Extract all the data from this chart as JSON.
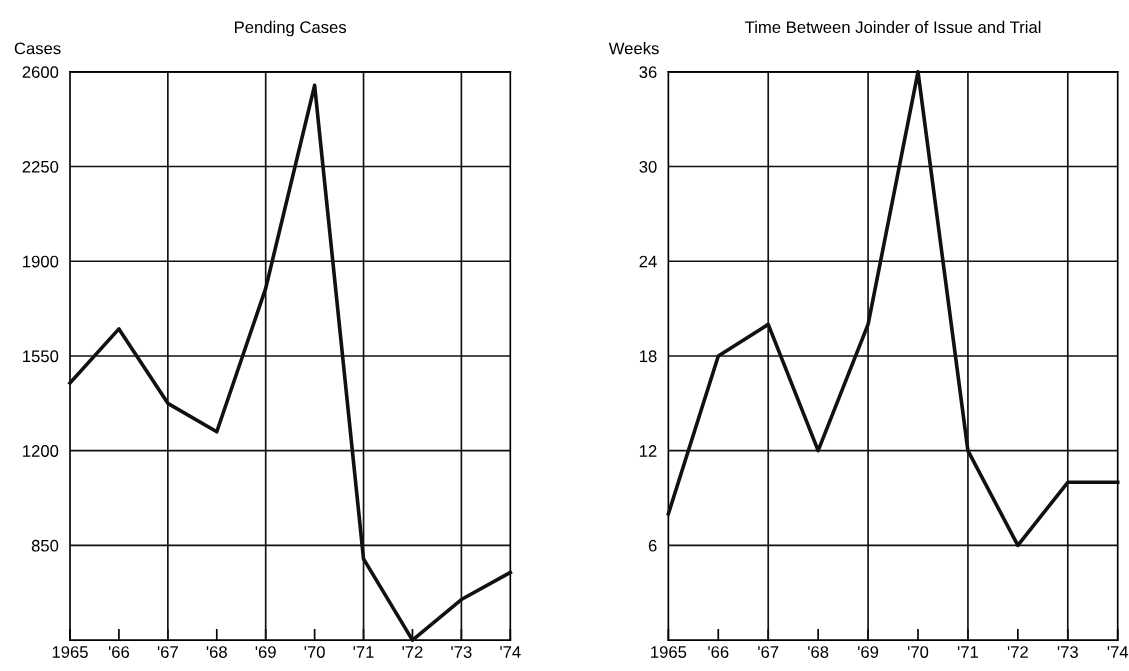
{
  "chart_data": [
    {
      "type": "line",
      "title": "Pending Cases",
      "ylabel": "Cases",
      "x": [
        1965,
        1966,
        1967,
        1968,
        1969,
        1970,
        1971,
        1972,
        1973,
        1974
      ],
      "series": [
        {
          "color": "#111111",
          "values": [
            1450,
            1650,
            1375,
            1270,
            1800,
            2550,
            800,
            500,
            650,
            750
          ]
        }
      ],
      "xlim": [
        1965,
        1974
      ],
      "xticks": [
        {
          "value": 1965,
          "label": "1965"
        },
        {
          "value": 1966,
          "label": "'66"
        },
        {
          "value": 1967,
          "label": "'67"
        },
        {
          "value": 1968,
          "label": "'68"
        },
        {
          "value": 1969,
          "label": "'69"
        },
        {
          "value": 1970,
          "label": "'70"
        },
        {
          "value": 1971,
          "label": "'71"
        },
        {
          "value": 1972,
          "label": "'72"
        },
        {
          "value": 1973,
          "label": "'73"
        },
        {
          "value": 1974,
          "label": "'74"
        }
      ],
      "ylim": [
        500,
        2600
      ],
      "yticks": [
        850,
        1200,
        1550,
        1900,
        2250,
        2600
      ],
      "grid": "y",
      "marker": "none",
      "line_style": "solid",
      "ref_lines": [
        {
          "axis": "x",
          "value": 1967
        },
        {
          "axis": "x",
          "value": 1969
        },
        {
          "axis": "x",
          "value": 1971
        },
        {
          "axis": "x",
          "value": 1973
        }
      ]
    },
    {
      "type": "line",
      "title": "Time Between Joinder of Issue and Trial",
      "ylabel": "Weeks",
      "x": [
        1965,
        1966,
        1967,
        1968,
        1969,
        1970,
        1971,
        1972,
        1973,
        1974
      ],
      "series": [
        {
          "color": "#111111",
          "values": [
            8,
            18,
            20,
            12,
            20,
            36,
            12,
            6,
            10,
            10
          ]
        }
      ],
      "xlim": [
        1965,
        1974
      ],
      "xticks": [
        {
          "value": 1965,
          "label": "1965"
        },
        {
          "value": 1966,
          "label": "'66"
        },
        {
          "value": 1967,
          "label": "'67"
        },
        {
          "value": 1968,
          "label": "'68"
        },
        {
          "value": 1969,
          "label": "'69"
        },
        {
          "value": 1970,
          "label": "'70"
        },
        {
          "value": 1971,
          "label": "'71"
        },
        {
          "value": 1972,
          "label": "'72"
        },
        {
          "value": 1973,
          "label": "'73"
        },
        {
          "value": 1974,
          "label": "'74"
        }
      ],
      "ylim": [
        0,
        36
      ],
      "yticks": [
        6,
        12,
        18,
        24,
        30,
        36
      ],
      "grid": "y",
      "marker": "none",
      "line_style": "solid",
      "ref_lines": [
        {
          "axis": "x",
          "value": 1967
        },
        {
          "axis": "x",
          "value": 1969
        },
        {
          "axis": "x",
          "value": 1971
        },
        {
          "axis": "x",
          "value": 1973
        }
      ]
    }
  ]
}
